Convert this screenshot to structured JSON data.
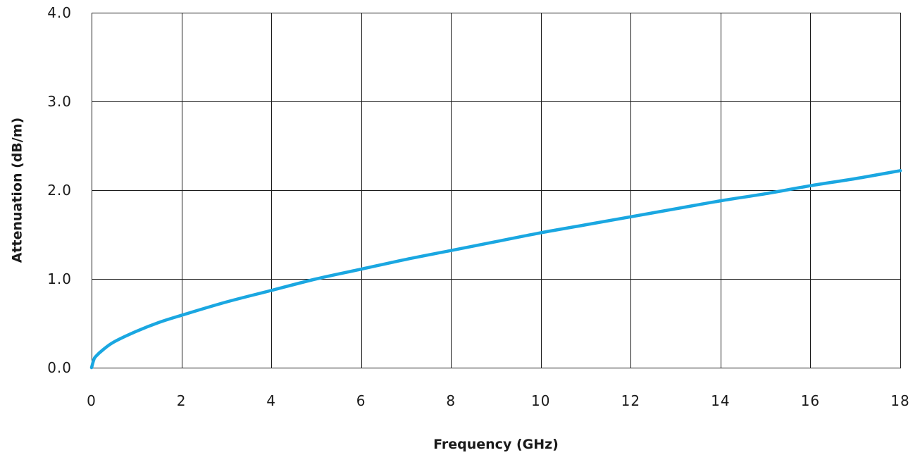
{
  "chart_data": {
    "type": "line",
    "title": "",
    "xlabel": "Frequency (GHz)",
    "ylabel": "Attenuation (dB/m)",
    "xlim": [
      0,
      18
    ],
    "ylim": [
      0,
      4
    ],
    "x_ticks": [
      0,
      2,
      4,
      6,
      8,
      10,
      12,
      14,
      16,
      18
    ],
    "y_ticks": [
      0,
      1,
      2,
      3,
      4
    ],
    "x_tick_labels": [
      "0",
      "2",
      "4",
      "6",
      "8",
      "10",
      "12",
      "14",
      "16",
      "18"
    ],
    "y_tick_labels": [
      "0.0",
      "1.0",
      "2.0",
      "3.0",
      "4.0"
    ],
    "grid": true,
    "legend": "none",
    "series": [
      {
        "color": "#1aa7e1",
        "x": [
          0,
          0.05,
          0.1,
          0.25,
          0.5,
          1,
          1.5,
          2,
          3,
          4,
          5,
          6,
          7,
          8,
          9,
          10,
          11,
          12,
          13,
          14,
          15,
          16,
          17,
          18
        ],
        "y": [
          0,
          0.09,
          0.13,
          0.2,
          0.29,
          0.41,
          0.51,
          0.59,
          0.74,
          0.87,
          1.0,
          1.11,
          1.22,
          1.32,
          1.42,
          1.52,
          1.61,
          1.7,
          1.79,
          1.88,
          1.96,
          2.05,
          2.13,
          2.22
        ]
      }
    ]
  }
}
